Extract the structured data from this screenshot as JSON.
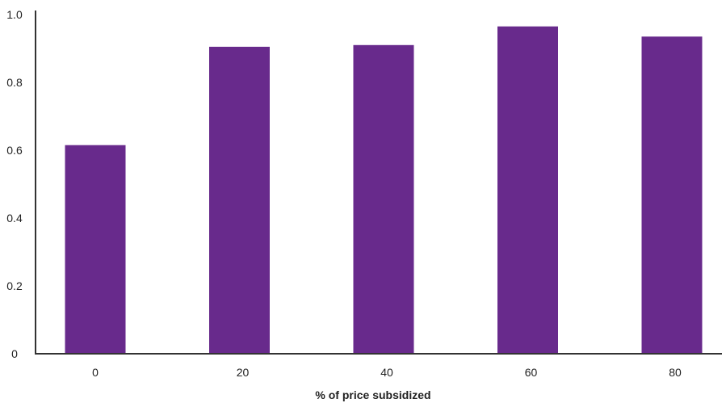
{
  "chart_data": {
    "type": "bar",
    "categories": [
      "0",
      "20",
      "40",
      "60",
      "80"
    ],
    "values": [
      0.615,
      0.905,
      0.91,
      0.965,
      0.935
    ],
    "title": "",
    "xlabel": "% of price subsidized",
    "ylabel": "",
    "ylim": [
      0,
      1.0
    ],
    "yticks": [
      0,
      0.2,
      0.4,
      0.6,
      0.8,
      1.0
    ],
    "ytick_labels": [
      "0",
      "0.2",
      "0.4",
      "0.6",
      "0.8",
      "1.0"
    ],
    "grid": false,
    "legend": "none",
    "bar_color": "#682a8c"
  }
}
